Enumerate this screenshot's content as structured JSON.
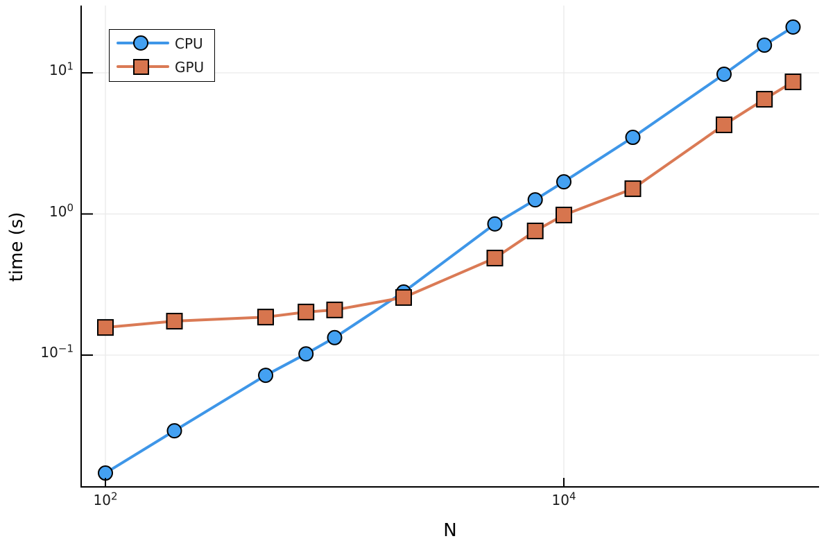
{
  "chart_data": {
    "type": "line",
    "title": "",
    "xlabel": "N",
    "ylabel": "time (s)",
    "x_scale": "log10",
    "y_scale": "log10",
    "xlim": [
      78,
      130000
    ],
    "ylim": [
      0.0117,
      30
    ],
    "grid_on": true,
    "legend_position": "top-left",
    "x": [
      100,
      200,
      500,
      750,
      1000,
      2000,
      5000,
      7500,
      10000,
      20000,
      50000,
      75000,
      100000
    ],
    "series": [
      {
        "name": "CPU",
        "marker": "circle",
        "line_color": "#3E96E8",
        "marker_color": "#44A1F2",
        "values": [
          0.0146,
          0.0291,
          0.0719,
          0.102,
          0.133,
          0.28,
          0.85,
          1.26,
          1.69,
          3.49,
          9.78,
          15.7,
          21.1
        ]
      },
      {
        "name": "GPU",
        "marker": "square",
        "line_color": "#DA7A55",
        "marker_color": "#D7754E",
        "values": [
          0.157,
          0.174,
          0.186,
          0.202,
          0.209,
          0.256,
          0.487,
          0.758,
          0.983,
          1.51,
          4.28,
          6.5,
          8.63
        ]
      }
    ],
    "xticks": [
      {
        "value": 100,
        "mantissa": "10",
        "exponent": "2"
      },
      {
        "value": 10000,
        "mantissa": "10",
        "exponent": "4"
      }
    ],
    "yticks": [
      {
        "value": 10,
        "mantissa": "10",
        "exponent": "1"
      },
      {
        "value": 1,
        "mantissa": "10",
        "exponent": "0"
      },
      {
        "value": 0.1,
        "mantissa": "10",
        "exponent": "−1"
      }
    ],
    "grid": {
      "x_values": [
        100,
        10000
      ],
      "y_values": [
        0.1,
        1,
        10
      ],
      "color": "#E9E9E9"
    },
    "axis_color": "#000000",
    "marker_edge_color": "#000000"
  }
}
